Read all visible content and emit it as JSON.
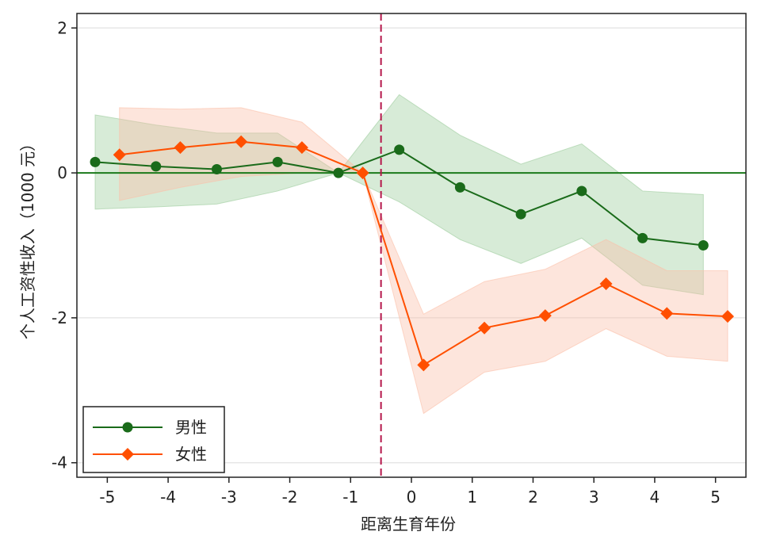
{
  "chart_data": {
    "type": "line",
    "xlabel": "距离生育年份",
    "ylabel": "个人工资性收入（1000 元）",
    "xlim": [
      -5.5,
      5.5
    ],
    "ylim": [
      -4.2,
      2.2
    ],
    "x_ticks": [
      -5,
      -4,
      -3,
      -2,
      -1,
      0,
      1,
      2,
      3,
      4,
      5
    ],
    "y_ticks": [
      -4,
      -2,
      0,
      2
    ],
    "reference_lines": {
      "horizontal_y": 0,
      "vertical_x": -0.5
    },
    "grid": "horizontal",
    "legend_position": "bottom-left",
    "series": [
      {
        "name": "男性",
        "color": "#1a6b1a",
        "band_color": "#9ccc9c",
        "marker": "circle",
        "points": [
          {
            "x": -5.2,
            "y": 0.15,
            "lo": -0.5,
            "hi": 0.8
          },
          {
            "x": -4.2,
            "y": 0.09,
            "lo": -0.47,
            "hi": 0.66
          },
          {
            "x": -3.2,
            "y": 0.05,
            "lo": -0.43,
            "hi": 0.55
          },
          {
            "x": -2.2,
            "y": 0.15,
            "lo": -0.25,
            "hi": 0.55
          },
          {
            "x": -1.2,
            "y": 0.0,
            "lo": 0.0,
            "hi": 0.0
          },
          {
            "x": -0.2,
            "y": 0.32,
            "lo": -0.4,
            "hi": 1.08
          },
          {
            "x": 0.8,
            "y": -0.2,
            "lo": -0.92,
            "hi": 0.52
          },
          {
            "x": 1.8,
            "y": -0.57,
            "lo": -1.25,
            "hi": 0.12
          },
          {
            "x": 2.8,
            "y": -0.25,
            "lo": -0.9,
            "hi": 0.4
          },
          {
            "x": 3.8,
            "y": -0.9,
            "lo": -1.55,
            "hi": -0.25
          },
          {
            "x": 4.8,
            "y": -1.0,
            "lo": -1.68,
            "hi": -0.3
          }
        ]
      },
      {
        "name": "女性",
        "color": "#ff4f00",
        "band_color": "#fbbfa8",
        "marker": "diamond",
        "points": [
          {
            "x": -4.8,
            "y": 0.25,
            "lo": -0.38,
            "hi": 0.9
          },
          {
            "x": -3.8,
            "y": 0.35,
            "lo": -0.2,
            "hi": 0.88
          },
          {
            "x": -2.8,
            "y": 0.43,
            "lo": -0.05,
            "hi": 0.9
          },
          {
            "x": -1.8,
            "y": 0.35,
            "lo": 0.0,
            "hi": 0.7
          },
          {
            "x": -0.8,
            "y": 0.0,
            "lo": 0.0,
            "hi": 0.0
          },
          {
            "x": 0.2,
            "y": -2.65,
            "lo": -3.32,
            "hi": -1.95
          },
          {
            "x": 1.2,
            "y": -2.14,
            "lo": -2.75,
            "hi": -1.5
          },
          {
            "x": 2.2,
            "y": -1.97,
            "lo": -2.6,
            "hi": -1.33
          },
          {
            "x": 3.2,
            "y": -1.53,
            "lo": -2.15,
            "hi": -0.92
          },
          {
            "x": 4.2,
            "y": -1.94,
            "lo": -2.53,
            "hi": -1.35
          },
          {
            "x": 5.2,
            "y": -1.98,
            "lo": -2.6,
            "hi": -1.35
          }
        ]
      }
    ]
  }
}
